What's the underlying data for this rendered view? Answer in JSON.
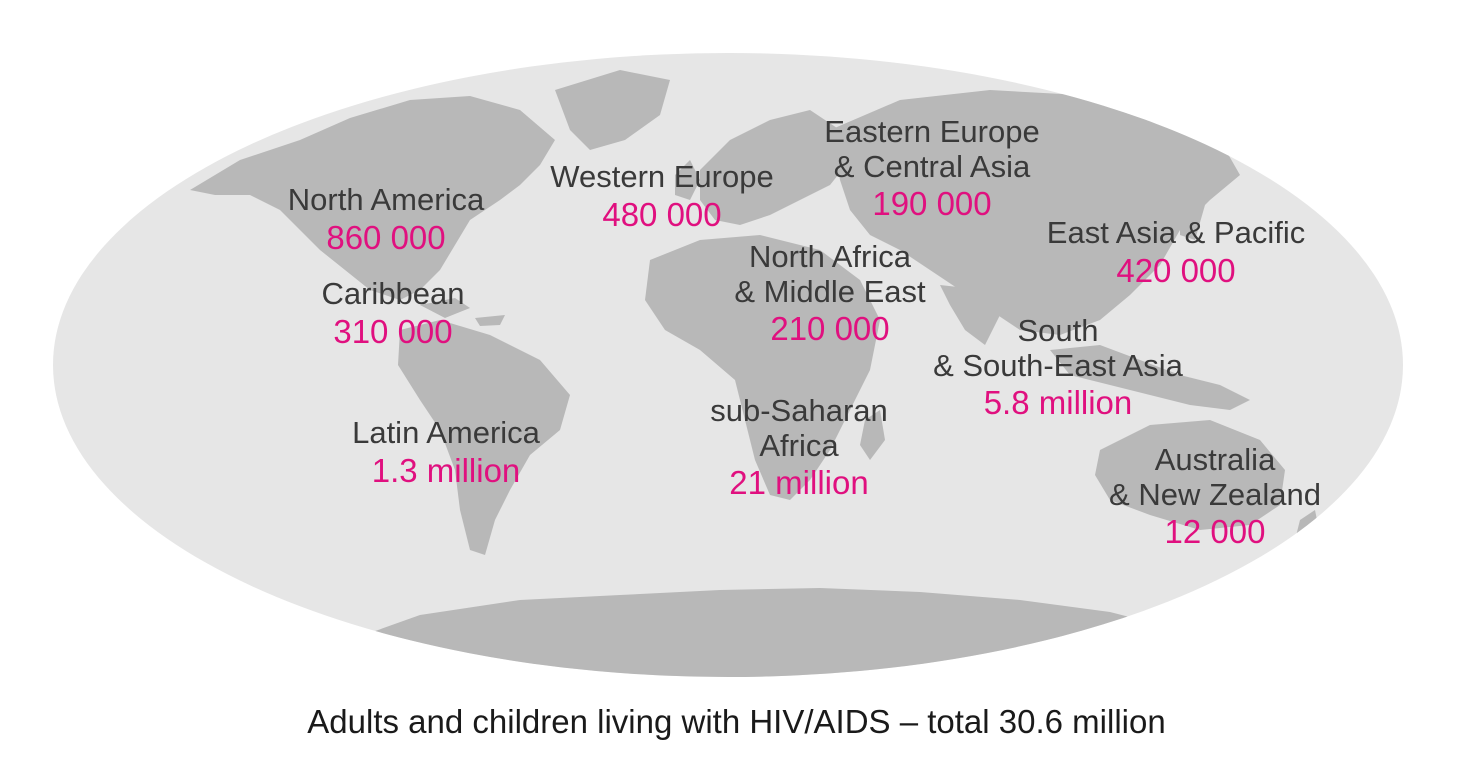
{
  "caption": "Adults and children living with HIV/AIDS – total 30.6 million",
  "colors": {
    "ocean": "#e6e6e6",
    "land": "#b8b8b8",
    "label": "#3a3a3a",
    "value": "#e0107f"
  },
  "regions": [
    {
      "id": "north-america",
      "name_lines": [
        "North America"
      ],
      "value": "860 000"
    },
    {
      "id": "caribbean",
      "name_lines": [
        "Caribbean"
      ],
      "value": "310 000"
    },
    {
      "id": "latin-america",
      "name_lines": [
        "Latin America"
      ],
      "value": "1.3 million"
    },
    {
      "id": "western-europe",
      "name_lines": [
        "Western Europe"
      ],
      "value": "480 000"
    },
    {
      "id": "eastern-europe-central-asia",
      "name_lines": [
        "Eastern Europe",
        "& Central Asia"
      ],
      "value": "190 000"
    },
    {
      "id": "north-africa-middle-east",
      "name_lines": [
        "North Africa",
        "& Middle East"
      ],
      "value": "210 000"
    },
    {
      "id": "sub-saharan-africa",
      "name_lines": [
        "sub-Saharan",
        "Africa"
      ],
      "value": "21 million"
    },
    {
      "id": "east-asia-pacific",
      "name_lines": [
        "East Asia & Pacific"
      ],
      "value": "420 000"
    },
    {
      "id": "south-southeast-asia",
      "name_lines": [
        "South",
        "& South-East Asia"
      ],
      "value": "5.8 million"
    },
    {
      "id": "australia-new-zealand",
      "name_lines": [
        "Australia",
        "& New Zealand"
      ],
      "value": "12 000"
    }
  ]
}
